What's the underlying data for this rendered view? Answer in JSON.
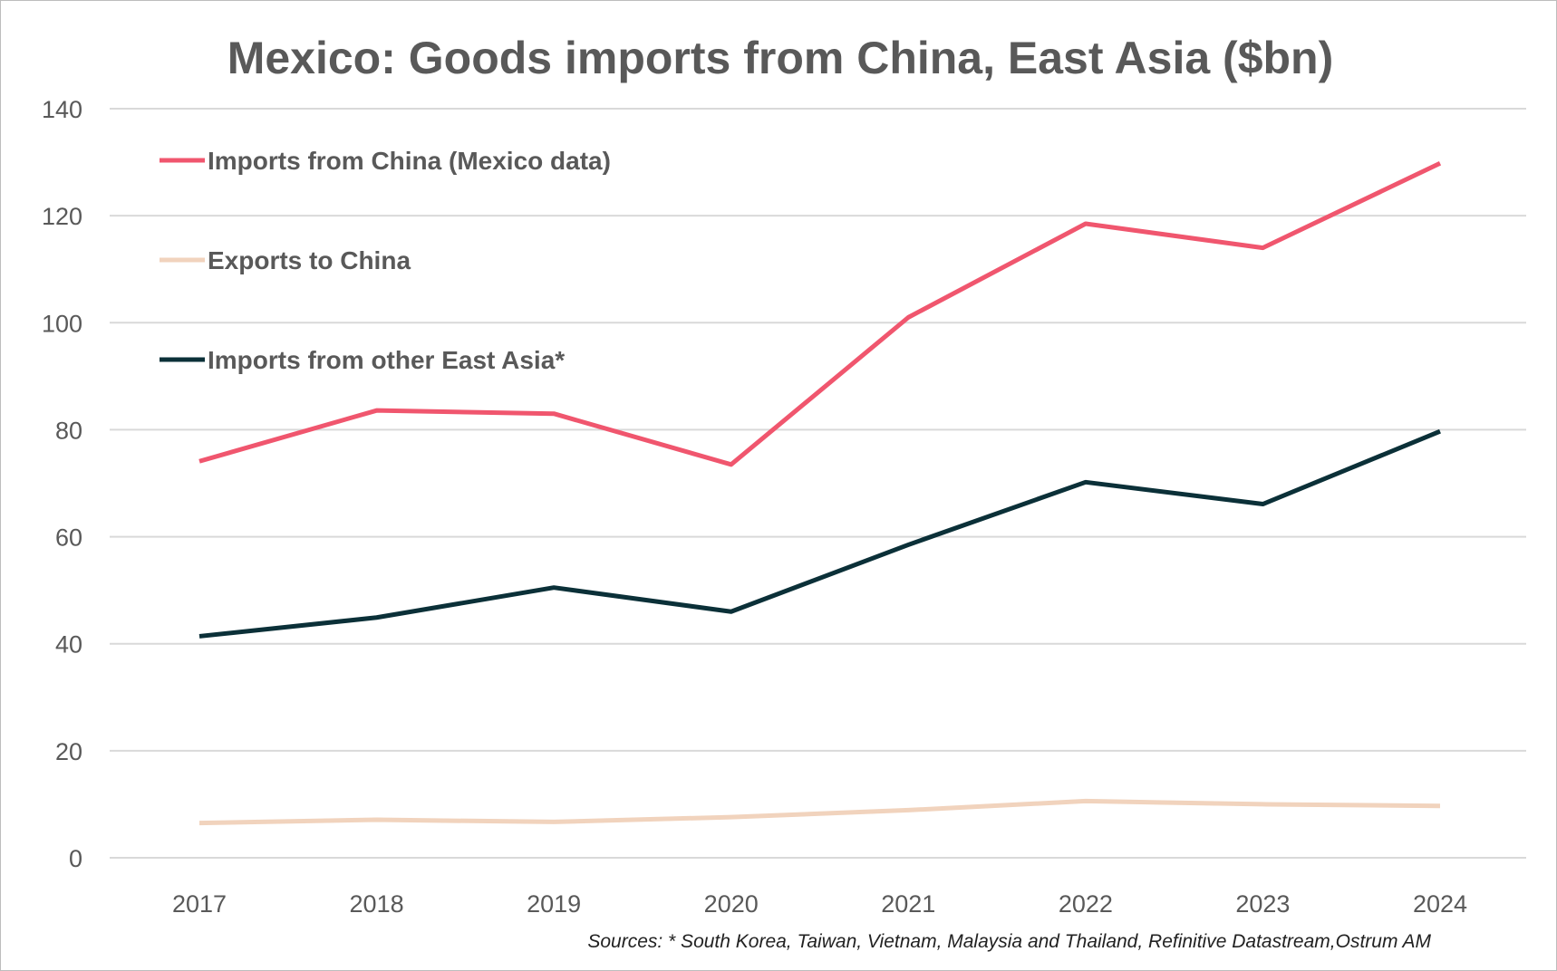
{
  "chart_data": {
    "type": "line",
    "title": "Mexico: Goods imports from China, East Asia ($bn)",
    "categories": [
      "2017",
      "2018",
      "2019",
      "2020",
      "2021",
      "2022",
      "2023",
      "2024"
    ],
    "ylim": [
      0,
      140
    ],
    "yticks": [
      0,
      20,
      40,
      60,
      80,
      100,
      120,
      140
    ],
    "grid": true,
    "legend_placement": "top-left",
    "series": [
      {
        "name": "Imports from China (Mexico data)",
        "color": "#f0566e",
        "values": [
          74.1,
          83.6,
          83.0,
          73.5,
          101.0,
          118.5,
          114.0,
          129.8
        ]
      },
      {
        "name": "Exports to China",
        "color": "#f1d3bd",
        "values": [
          6.5,
          7.1,
          6.7,
          7.6,
          8.9,
          10.6,
          10.0,
          9.7
        ]
      },
      {
        "name": "Imports from other East Asia*",
        "color": "#0b3038",
        "values": [
          41.4,
          44.9,
          50.5,
          46.0,
          58.5,
          70.2,
          66.1,
          79.7
        ]
      }
    ],
    "source": "Sources: * South Korea, Taiwan, Vietnam, Malaysia and Thailand, Refinitive Datastream,Ostrum AM"
  }
}
